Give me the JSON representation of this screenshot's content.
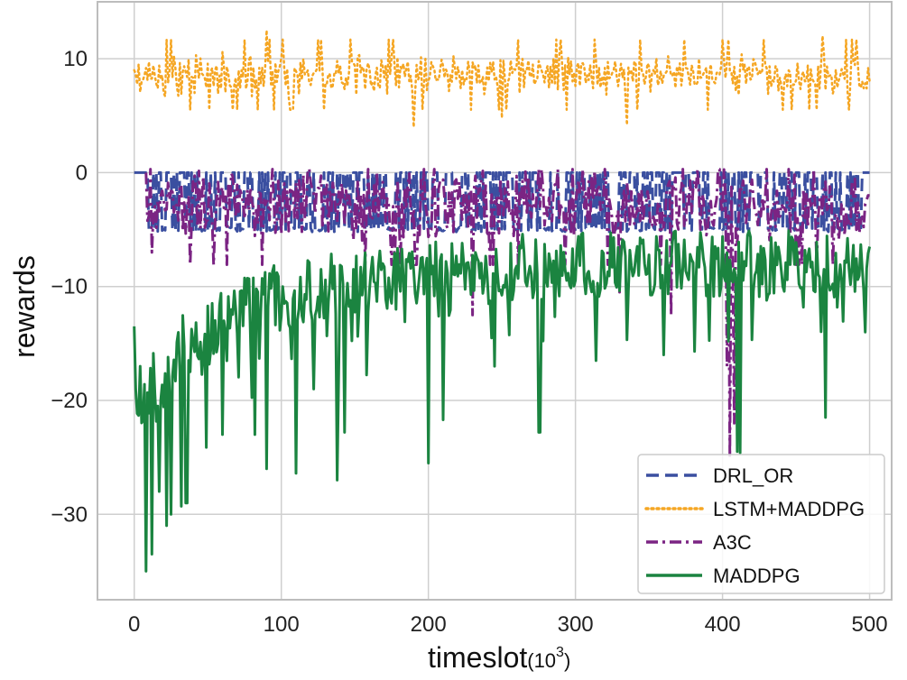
{
  "chart_data": {
    "type": "line",
    "title": "",
    "xlabel": "timeslot",
    "xlabel_unit_base": "(10",
    "xlabel_unit_exp": "3",
    "xlabel_unit_close": ")",
    "ylabel": "rewards",
    "xlim": [
      -25,
      515
    ],
    "ylim": [
      -37.5,
      15
    ],
    "xticks": [
      0,
      100,
      200,
      300,
      400,
      500
    ],
    "xtick_labels": [
      "0",
      "100",
      "200",
      "300",
      "400",
      "500"
    ],
    "yticks": [
      10,
      0,
      -10,
      -20,
      -30
    ],
    "ytick_labels": [
      "10",
      "0",
      "−10",
      "−20",
      "−30"
    ],
    "grid": true,
    "legend_position": "bottom-right",
    "n_points": 500,
    "series": [
      {
        "name": "DRL_OR",
        "color": "#3a4fa0",
        "style": "dashed",
        "pattern": {
          "kind": "step_dips",
          "start": 0,
          "end": 500,
          "base": 0,
          "low": -5,
          "noise": 0.4,
          "seed": 11
        },
        "samples": [
          [
            0,
            0
          ],
          [
            10,
            -5
          ],
          [
            25,
            0
          ],
          [
            100,
            -5
          ],
          [
            200,
            -4.5
          ],
          [
            300,
            -5
          ],
          [
            400,
            -5
          ],
          [
            495,
            0
          ]
        ]
      },
      {
        "name": "LSTM+MADDPG",
        "color": "#f5a623",
        "style": "dotted",
        "pattern": {
          "kind": "noisy",
          "start": 0,
          "end": 500,
          "mean": 8.6,
          "amp": 1.4,
          "min": 4.0,
          "max": 12.5,
          "seed": 23
        },
        "samples": [
          [
            0,
            9
          ],
          [
            38,
            5.5
          ],
          [
            90,
            12.5
          ],
          [
            190,
            4
          ],
          [
            250,
            4.8
          ],
          [
            335,
            4.2
          ],
          [
            468,
            12
          ],
          [
            500,
            8
          ]
        ]
      },
      {
        "name": "A3C",
        "color": "#7b2483",
        "style": "dashdot",
        "pattern": {
          "kind": "noisy",
          "start": 8,
          "end": 500,
          "mean": -2.8,
          "amp": 2.4,
          "min": -9.0,
          "max": 0.3,
          "seed": 37
        },
        "samples": [
          [
            8,
            0
          ],
          [
            12,
            -7
          ],
          [
            230,
            -12
          ],
          [
            330,
            -10.5
          ],
          [
            405,
            -25
          ],
          [
            500,
            -2
          ]
        ]
      },
      {
        "name": "MADDPG",
        "color": "#1b8440",
        "style": "solid",
        "pattern": {
          "kind": "decay_noisy",
          "start": 0,
          "end": 500,
          "start_mean": -20,
          "end_mean": -8,
          "decay": 70,
          "amp": 3.0,
          "max": -3.5,
          "min": -27,
          "seed": 53
        },
        "samples": [
          [
            0,
            -13.5
          ],
          [
            8,
            -35
          ],
          [
            25,
            -30
          ],
          [
            35,
            -29
          ],
          [
            138,
            -27
          ],
          [
            200,
            -25.5
          ],
          [
            275,
            -22.8
          ],
          [
            410,
            -24.5
          ],
          [
            470,
            -21.5
          ],
          [
            500,
            -6.5
          ]
        ]
      }
    ],
    "spikes": [
      {
        "series": "MADDPG",
        "points": [
          [
            4,
            -17
          ],
          [
            8,
            -35
          ],
          [
            12,
            -33.5
          ],
          [
            17,
            -28
          ],
          [
            22,
            -31
          ],
          [
            32,
            -29.3
          ],
          [
            36,
            -29
          ],
          [
            60,
            -23
          ],
          [
            82,
            -23
          ],
          [
            90,
            -26
          ],
          [
            110,
            -26.4
          ],
          [
            122,
            -19
          ],
          [
            138,
            -27
          ],
          [
            143,
            -22.8
          ],
          [
            178,
            -12
          ],
          [
            200,
            -25.5
          ],
          [
            210,
            -21.7
          ],
          [
            245,
            -17
          ],
          [
            276,
            -22.8
          ],
          [
            360,
            -16
          ],
          [
            412,
            -24.6
          ],
          [
            470,
            -21.5
          ],
          [
            497,
            -14
          ]
        ]
      },
      {
        "series": "A3C",
        "points": [
          [
            230,
            -12.5
          ],
          [
            330,
            -10.5
          ],
          [
            365,
            -12.5
          ],
          [
            403,
            -17
          ],
          [
            405,
            -25
          ],
          [
            408,
            -22
          ]
        ]
      }
    ]
  }
}
